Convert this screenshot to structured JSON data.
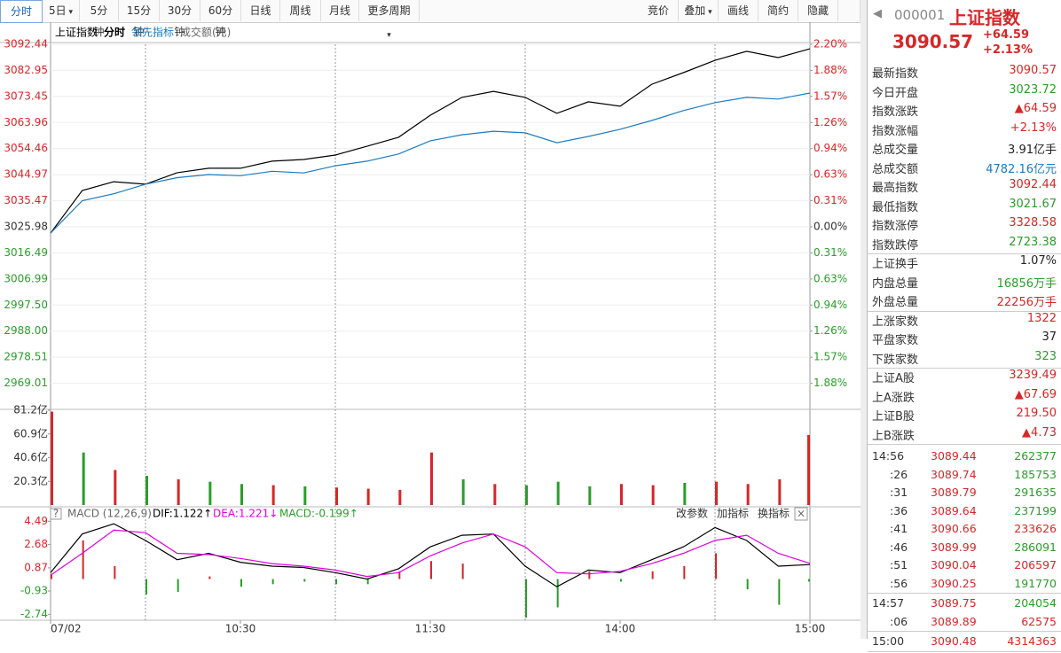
{
  "toolbar": {
    "periods": [
      "分时",
      "5日",
      "5分钟",
      "15分钟",
      "30分钟",
      "60分钟",
      "日线",
      "周线",
      "月线",
      "更多周期"
    ],
    "tools": [
      "竞价",
      "叠加",
      "画线",
      "简约",
      "隐藏"
    ]
  },
  "mode": "分时",
  "chart_data": [
    {
      "type": "line",
      "x": [
        0,
        10,
        20,
        30,
        40,
        50,
        60,
        70,
        80,
        90,
        100,
        110,
        120,
        130,
        140,
        150,
        160,
        170,
        180,
        190,
        200,
        210,
        220,
        230,
        240
      ],
      "series": [
        {
          "name": "上证指数",
          "color": "#000000",
          "values": [
            3023.7,
            3039.2,
            3042.4,
            3041.5,
            3045.7,
            3047.3,
            3047.3,
            3049.9,
            3050.5,
            3052.1,
            3055.3,
            3058.6,
            3066.6,
            3073.1,
            3075.3,
            3073.1,
            3067.3,
            3071.5,
            3069.9,
            3077.9,
            3082.1,
            3086.6,
            3089.9,
            3087.6,
            3090.8
          ]
        },
        {
          "name": "领先指标",
          "color": "#1a7bc1",
          "values": [
            3023.7,
            3035.5,
            3038.0,
            3041.5,
            3043.9,
            3045.0,
            3044.6,
            3046.2,
            3045.6,
            3048.2,
            3049.9,
            3052.5,
            3057.3,
            3059.5,
            3060.8,
            3060.2,
            3056.6,
            3058.9,
            3061.5,
            3064.7,
            3068.3,
            3071.2,
            3073.1,
            3072.5,
            3074.7
          ]
        }
      ],
      "xlim": [
        0,
        240
      ],
      "xticks": [
        {
          "value": 0,
          "label": "07/02"
        },
        {
          "value": 60,
          "label": "10:30"
        },
        {
          "value": 120,
          "label": "11:30"
        },
        {
          "value": 180,
          "label": "14:00"
        },
        {
          "value": 240,
          "label": "15:00"
        }
      ],
      "minor_xticks": [
        30,
        90,
        150,
        210
      ],
      "ylim": [
        2959.52,
        3092.44
      ],
      "yticks": [
        3092.44,
        3082.95,
        3073.45,
        3063.96,
        3054.46,
        3044.97,
        3035.47,
        3025.98,
        3016.49,
        3006.99,
        {
          "value": 2997.5,
          "label": "2997.50"
        },
        {
          "value": 2988,
          "label": "2988.00"
        },
        2978.51,
        2969.01
      ],
      "y2lim": [
        -2.196,
        2.196
      ],
      "y2ticks": [
        {
          "value": 2.196,
          "label": "2.20%"
        },
        {
          "value": 1.882,
          "label": "1.88%"
        },
        {
          "value": 1.569,
          "label": "1.57%"
        },
        {
          "value": 1.255,
          "label": "1.26%"
        },
        {
          "value": 0.941,
          "label": "0.94%"
        },
        {
          "value": 0.627,
          "label": "0.63%"
        },
        {
          "value": 0.314,
          "label": "0.31%"
        },
        {
          "value": 0,
          "label": "0.00%"
        },
        {
          "value": -0.314,
          "label": "0.31%"
        },
        {
          "value": -0.627,
          "label": "0.63%"
        },
        {
          "value": -0.941,
          "label": "0.94%"
        },
        {
          "value": -1.255,
          "label": "1.26%"
        },
        {
          "value": -1.569,
          "label": "1.57%"
        },
        {
          "value": -1.882,
          "label": "1.88%"
        }
      ],
      "up_color": "#d62728",
      "down_color": "#2a9d2a",
      "flat_color": "#333333"
    },
    {
      "type": "bar",
      "title": "成交额(元)",
      "x": [
        0,
        10,
        20,
        30,
        40,
        50,
        60,
        70,
        80,
        90,
        100,
        110,
        120,
        130,
        140,
        150,
        160,
        170,
        180,
        190,
        200,
        210,
        220,
        230,
        240
      ],
      "values": [
        80,
        45,
        30,
        25,
        22,
        20,
        18,
        17,
        16,
        15,
        14,
        13,
        45,
        22,
        18,
        17,
        20,
        16,
        18,
        17,
        19,
        20,
        18,
        22,
        60
      ],
      "colors": [
        "#d62728",
        "#2a9d2a",
        "#d62728",
        "#2a9d2a",
        "#d62728",
        "#2a9d2a",
        "#2a9d2a",
        "#d62728",
        "#2a9d2a",
        "#d62728",
        "#d62728",
        "#d62728",
        "#d62728",
        "#2a9d2a",
        "#d62728",
        "#2a9d2a",
        "#2a9d2a",
        "#2a9d2a",
        "#d62728",
        "#d62728",
        "#2a9d2a",
        "#d62728",
        "#d62728",
        "#d62728",
        "#d62728"
      ],
      "xlim": [
        0,
        240
      ],
      "ylim": [
        0,
        81.2
      ],
      "yticks": [
        {
          "value": 81.2,
          "label": "81.2亿"
        },
        {
          "value": 60.9,
          "label": "60.9亿"
        },
        {
          "value": 40.6,
          "label": "40.6亿"
        },
        {
          "value": 20.3,
          "label": "20.3亿"
        }
      ]
    },
    {
      "type": "macd",
      "title": "MACD (12,26,9)",
      "labels": [
        "DIF:1.122↑",
        "DEA:1.221↓",
        "MACD:-0.199↑"
      ],
      "label_colors": [
        "#000000",
        "#e000e0",
        "#2a9d2a"
      ],
      "buttons": [
        "改参数",
        "加指标",
        "换指标"
      ],
      "x": [
        0,
        10,
        20,
        30,
        40,
        50,
        60,
        70,
        80,
        90,
        100,
        110,
        120,
        130,
        140,
        150,
        160,
        170,
        180,
        190,
        200,
        210,
        220,
        230,
        240
      ],
      "series": [
        {
          "color": "#000000",
          "values": [
            0.5,
            3.5,
            4.3,
            3.0,
            1.5,
            2.0,
            1.3,
            1.0,
            0.9,
            0.5,
            0,
            0.8,
            2.5,
            3.4,
            3.5,
            1.0,
            -0.6,
            0.7,
            0.5,
            1.5,
            2.5,
            4.0,
            3.0,
            1.0,
            1.122
          ]
        },
        {
          "color": "#e000e0",
          "values": [
            0.3,
            2.0,
            3.8,
            3.6,
            2.0,
            1.9,
            1.6,
            1.2,
            1.0,
            0.7,
            0.2,
            0.5,
            1.8,
            2.8,
            3.5,
            2.5,
            0.5,
            0.4,
            0.6,
            1.2,
            2.0,
            3.0,
            3.4,
            2.0,
            1.221
          ]
        }
      ],
      "histogram": [
        0.4,
        3,
        1,
        -1.2,
        -1,
        0.2,
        -0.6,
        -0.4,
        -0.2,
        -0.4,
        -0.4,
        0.6,
        1.4,
        1.2,
        0,
        -3,
        -2.2,
        0.6,
        -0.2,
        0.6,
        1,
        2,
        -0.8,
        -2,
        -0.199
      ],
      "up_color": "#d62728",
      "down_color": "#2a9d2a",
      "xlim": [
        0,
        240
      ],
      "ylim": [
        -3.2,
        5.2
      ],
      "yticks": [
        4.49,
        2.68,
        0.87,
        -0.93,
        -2.74
      ]
    }
  ],
  "quote": {
    "code": "000001",
    "name": "上证指数",
    "price": "3090.57",
    "change": "+64.59",
    "change_pct": "+2.13%"
  },
  "stats": [
    [
      {
        "label": "最新指数",
        "value": "3090.57",
        "color": "#d62728"
      },
      {
        "label": "今日开盘",
        "value": "3023.72",
        "color": "#2a9d2a"
      },
      {
        "label": "指数涨跌",
        "value": "▲64.59",
        "color": "#d62728"
      },
      {
        "label": "指数涨幅",
        "value": "+2.13%",
        "color": "#d62728"
      },
      {
        "label": "总成交量",
        "value": "3.91亿手",
        "color": "#222222"
      },
      {
        "label": "总成交额",
        "value": "4782.16亿元",
        "color": "#1a7bc1"
      },
      {
        "label": "最高指数",
        "value": "3092.44",
        "color": "#d62728"
      },
      {
        "label": "最低指数",
        "value": "3021.67",
        "color": "#2a9d2a"
      },
      {
        "label": "指数涨停",
        "value": "3328.58",
        "color": "#d62728"
      },
      {
        "label": "指数跌停",
        "value": "2723.38",
        "color": "#2a9d2a"
      }
    ],
    [
      {
        "label": "上证换手",
        "value": "1.07%",
        "color": "#222222"
      },
      {
        "label": "内盘总量",
        "value": "16856万手",
        "color": "#2a9d2a"
      },
      {
        "label": "外盘总量",
        "value": "22256万手",
        "color": "#d62728"
      }
    ],
    [
      {
        "label": "上涨家数",
        "value": "1322",
        "color": "#d62728"
      },
      {
        "label": "平盘家数",
        "value": "37",
        "color": "#222222"
      },
      {
        "label": "下跌家数",
        "value": "323",
        "color": "#2a9d2a"
      }
    ],
    [
      {
        "label": "上证A股",
        "value": "3239.49",
        "color": "#d62728"
      },
      {
        "label": "上A涨跌",
        "value": "▲67.69",
        "color": "#d62728"
      },
      {
        "label": "上证B股",
        "value": "219.50",
        "color": "#d62728"
      },
      {
        "label": "上B涨跌",
        "value": "▲4.73",
        "color": "#d62728"
      }
    ]
  ],
  "trades": [
    [
      {
        "time": "14:56",
        "price": "3089.44",
        "volume": "262377",
        "color": "#2a9d2a"
      },
      {
        "time": ":26",
        "price": "3089.74",
        "volume": "185753",
        "color": "#2a9d2a"
      },
      {
        "time": ":31",
        "price": "3089.79",
        "volume": "291635",
        "color": "#2a9d2a"
      },
      {
        "time": ":36",
        "price": "3089.64",
        "volume": "237199",
        "color": "#2a9d2a"
      },
      {
        "time": ":41",
        "price": "3090.66",
        "volume": "233626",
        "color": "#d62728"
      },
      {
        "time": ":46",
        "price": "3089.99",
        "volume": "286091",
        "color": "#2a9d2a"
      },
      {
        "time": ":51",
        "price": "3090.04",
        "volume": "206597",
        "color": "#d62728"
      },
      {
        "time": ":56",
        "price": "3090.25",
        "volume": "191770",
        "color": "#2a9d2a"
      }
    ],
    [
      {
        "time": "14:57",
        "price": "3089.75",
        "volume": "204054",
        "color": "#2a9d2a"
      },
      {
        "time": ":06",
        "price": "3089.89",
        "volume": "62575",
        "color": "#d62728"
      }
    ],
    [
      {
        "time": "15:00",
        "price": "3090.48",
        "volume": "4314363",
        "color": "#d62728"
      }
    ]
  ]
}
